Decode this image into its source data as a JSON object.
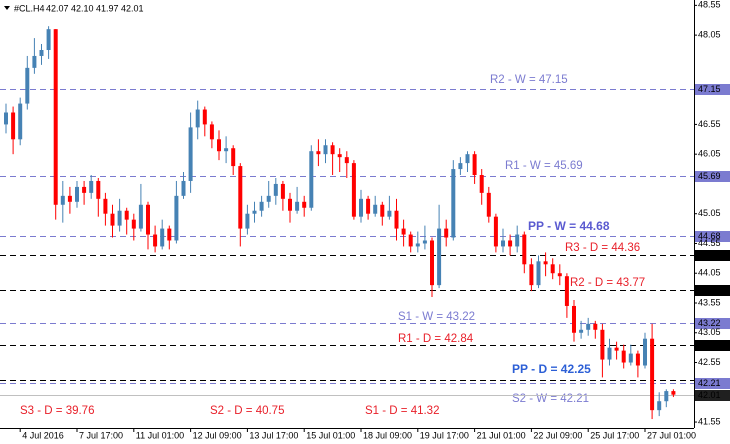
{
  "chart_data": {
    "type": "candlestick",
    "symbol": "#CL.H4",
    "quote": {
      "open": 42.07,
      "high": {
        "value": 42.1,
        "label": "42.10"
      },
      "low": 41.97,
      "close": 42.01
    },
    "up_color": "#4682b4",
    "down_color": "#ff0000",
    "ylim": [
      41.45,
      48.64
    ],
    "yticks": [
      48.55,
      48.05,
      46.55,
      46.05,
      45.05,
      44.55,
      44.05,
      43.55,
      43.05,
      42.55,
      41.55
    ],
    "categories": [
      null,
      null,
      "4 Jul 2016",
      null,
      null,
      null,
      null,
      null,
      null,
      null,
      "7 Jul 17:00",
      null,
      null,
      null,
      null,
      null,
      null,
      null,
      "11 Jul 01:00",
      null,
      null,
      null,
      null,
      null,
      null,
      null,
      "12 Jul 09:00",
      null,
      null,
      null,
      null,
      null,
      null,
      null,
      "13 Jul 17:00",
      null,
      null,
      null,
      null,
      null,
      null,
      null,
      "15 Jul 01:00",
      null,
      null,
      null,
      null,
      null,
      null,
      null,
      "18 Jul 09:00",
      null,
      null,
      null,
      null,
      null,
      null,
      null,
      "19 Jul 17:00",
      null,
      null,
      null,
      null,
      null,
      null,
      null,
      "21 Jul 01:00",
      null,
      null,
      null,
      null,
      null,
      null,
      null,
      "22 Jul 09:00",
      null,
      null,
      null,
      null,
      null,
      null,
      null,
      "25 Jul 17:00",
      null,
      null,
      null,
      null,
      null,
      null,
      null,
      "27 Jul 01:00",
      null,
      null,
      null,
      null
    ],
    "open": [
      46.55,
      46.75,
      46.3,
      46.9,
      47.5,
      47.7,
      47.8,
      48.15,
      45.2,
      45.35,
      45.25,
      45.5,
      45.4,
      45.6,
      45.3,
      45.05,
      44.85,
      45.1,
      44.95,
      44.8,
      45.2,
      44.7,
      44.5,
      44.8,
      44.6,
      45.35,
      45.6,
      46.5,
      46.8,
      46.55,
      46.3,
      46.1,
      46.15,
      45.85,
      44.8,
      45.05,
      45.1,
      45.25,
      45.35,
      45.55,
      45.3,
      45.1,
      45.25,
      45.15,
      46.1,
      46.05,
      46.2,
      46.05,
      46.0,
      45.9,
      45.0,
      45.3,
      45.05,
      45.2,
      45.0,
      45.1,
      44.8,
      44.7,
      44.5,
      44.55,
      44.6,
      43.85,
      44.8,
      44.65,
      45.8,
      45.9,
      46.05,
      45.7,
      45.4,
      45.0,
      44.5,
      44.6,
      44.5,
      44.7,
      44.2,
      43.85,
      44.25,
      44.2,
      44.05,
      44.0,
      43.5,
      43.05,
      43.1,
      43.2,
      43.1,
      42.6,
      42.8,
      42.75,
      42.55,
      42.7,
      42.5,
      42.95,
      41.75,
      41.9,
      42.07
    ],
    "high": [
      46.9,
      46.85,
      47.0,
      47.7,
      48.0,
      47.9,
      48.2,
      48.15,
      45.6,
      45.5,
      45.6,
      45.6,
      45.7,
      45.65,
      45.4,
      45.2,
      45.3,
      45.15,
      45.05,
      45.55,
      45.25,
      44.85,
      44.95,
      44.85,
      45.6,
      45.75,
      46.75,
      46.95,
      46.85,
      46.6,
      46.45,
      46.35,
      46.2,
      45.9,
      45.2,
      45.25,
      45.35,
      45.6,
      45.65,
      45.6,
      45.4,
      45.5,
      45.35,
      46.2,
      46.3,
      46.3,
      46.25,
      46.15,
      46.1,
      45.95,
      45.45,
      45.35,
      45.35,
      45.25,
      45.35,
      45.3,
      44.95,
      44.75,
      44.75,
      44.85,
      44.65,
      45.2,
      44.95,
      45.95,
      46.0,
      46.1,
      46.1,
      45.8,
      45.5,
      45.05,
      44.8,
      44.7,
      44.85,
      44.75,
      44.3,
      44.35,
      44.4,
      44.3,
      44.2,
      44.05,
      43.6,
      43.25,
      43.3,
      43.25,
      43.2,
      42.95,
      42.9,
      42.85,
      42.85,
      42.75,
      43.05,
      43.2,
      42.05,
      42.1,
      42.1
    ],
    "low": [
      46.4,
      46.05,
      46.2,
      46.8,
      47.4,
      47.55,
      47.65,
      44.95,
      44.9,
      45.05,
      45.15,
      45.2,
      45.3,
      45.0,
      44.85,
      44.65,
      44.75,
      44.7,
      44.6,
      44.75,
      44.45,
      44.4,
      44.45,
      44.45,
      44.55,
      45.3,
      45.4,
      46.3,
      46.35,
      46.15,
      45.95,
      45.9,
      45.7,
      44.5,
      44.7,
      44.9,
      45.0,
      45.15,
      45.2,
      45.1,
      44.9,
      45.05,
      45.0,
      45.1,
      45.85,
      45.9,
      45.7,
      45.75,
      45.65,
      44.95,
      44.9,
      44.95,
      45.0,
      44.85,
      44.95,
      44.6,
      44.5,
      44.4,
      44.4,
      44.45,
      43.65,
      43.8,
      44.5,
      44.6,
      45.7,
      45.75,
      45.55,
      45.2,
      44.9,
      44.4,
      44.4,
      44.35,
      44.4,
      44.05,
      43.75,
      43.8,
      44.0,
      43.95,
      43.85,
      43.3,
      42.9,
      42.95,
      43.0,
      42.95,
      42.3,
      42.5,
      42.6,
      42.45,
      42.5,
      42.3,
      42.45,
      41.6,
      41.65,
      41.8,
      41.97
    ],
    "close": [
      46.75,
      46.3,
      46.9,
      47.5,
      47.7,
      47.8,
      48.15,
      45.2,
      45.35,
      45.25,
      45.5,
      45.4,
      45.6,
      45.3,
      45.05,
      44.85,
      45.1,
      44.95,
      44.8,
      45.2,
      44.7,
      44.5,
      44.8,
      44.6,
      45.35,
      45.6,
      46.5,
      46.8,
      46.55,
      46.3,
      46.1,
      46.15,
      45.85,
      44.8,
      45.05,
      45.1,
      45.25,
      45.35,
      45.55,
      45.3,
      45.1,
      45.25,
      45.15,
      46.1,
      46.05,
      46.2,
      46.05,
      46.0,
      45.9,
      45.0,
      45.3,
      45.05,
      45.2,
      45.0,
      45.1,
      44.8,
      44.7,
      44.5,
      44.55,
      44.6,
      43.85,
      44.8,
      44.65,
      45.8,
      45.9,
      46.05,
      45.7,
      45.4,
      45.0,
      44.5,
      44.6,
      44.5,
      44.7,
      44.2,
      43.85,
      44.25,
      44.2,
      44.05,
      44.0,
      43.5,
      43.05,
      43.1,
      43.2,
      43.1,
      42.6,
      42.8,
      42.75,
      42.55,
      42.7,
      42.5,
      42.95,
      41.75,
      41.9,
      42.07,
      42.01
    ],
    "levels": [
      {
        "label": "R2 - W = 47.15",
        "value": 47.15,
        "color": "#7b7bd0",
        "text_color": "#7b7bd0",
        "tag": true
      },
      {
        "label": "R1 - W = 45.69",
        "value": 45.69,
        "color": "#7b7bd0",
        "text_color": "#7b7bd0",
        "tag": true
      },
      {
        "label": "PP - W = 44.68",
        "value": 44.68,
        "color": "#7b7bd0",
        "text_color": "#5a5ad0",
        "tag": true
      },
      {
        "label": "R3 - D = 44.36",
        "value": 44.36,
        "color": "#000000",
        "text_color": "#e8202a",
        "tag": true
      },
      {
        "label": "R2 - D = 43.77",
        "value": 43.77,
        "color": "#000000",
        "text_color": "#e8202a",
        "tag": true
      },
      {
        "label": "S1 - W = 43.22",
        "value": 43.22,
        "color": "#7b7bd0",
        "text_color": "#7b7bd0",
        "tag": true
      },
      {
        "label": "R1 - D = 42.84",
        "value": 42.84,
        "color": "#000000",
        "text_color": "#e8202a",
        "tag": true
      },
      {
        "label": "PP - D = 42.25",
        "value": 42.25,
        "color": "#000000",
        "text_color": "#2c5fd6",
        "tag": false
      },
      {
        "label": "S2 - W = 42.21",
        "value": 42.21,
        "color": "#7b7bd0",
        "text_color": "#7b7bd0",
        "tag": true
      },
      {
        "label": "S3 - D = 39.76",
        "value": 39.76,
        "color": "#000000",
        "text_color": "#e8202a",
        "tag": false
      },
      {
        "label": "S2 - D = 40.75",
        "value": 40.75,
        "color": "#000000",
        "text_color": "#e8202a",
        "tag": false
      },
      {
        "label": "S1 - D = 41.32",
        "value": 41.32,
        "color": "#000000",
        "text_color": "#e8202a",
        "tag": false
      }
    ]
  }
}
